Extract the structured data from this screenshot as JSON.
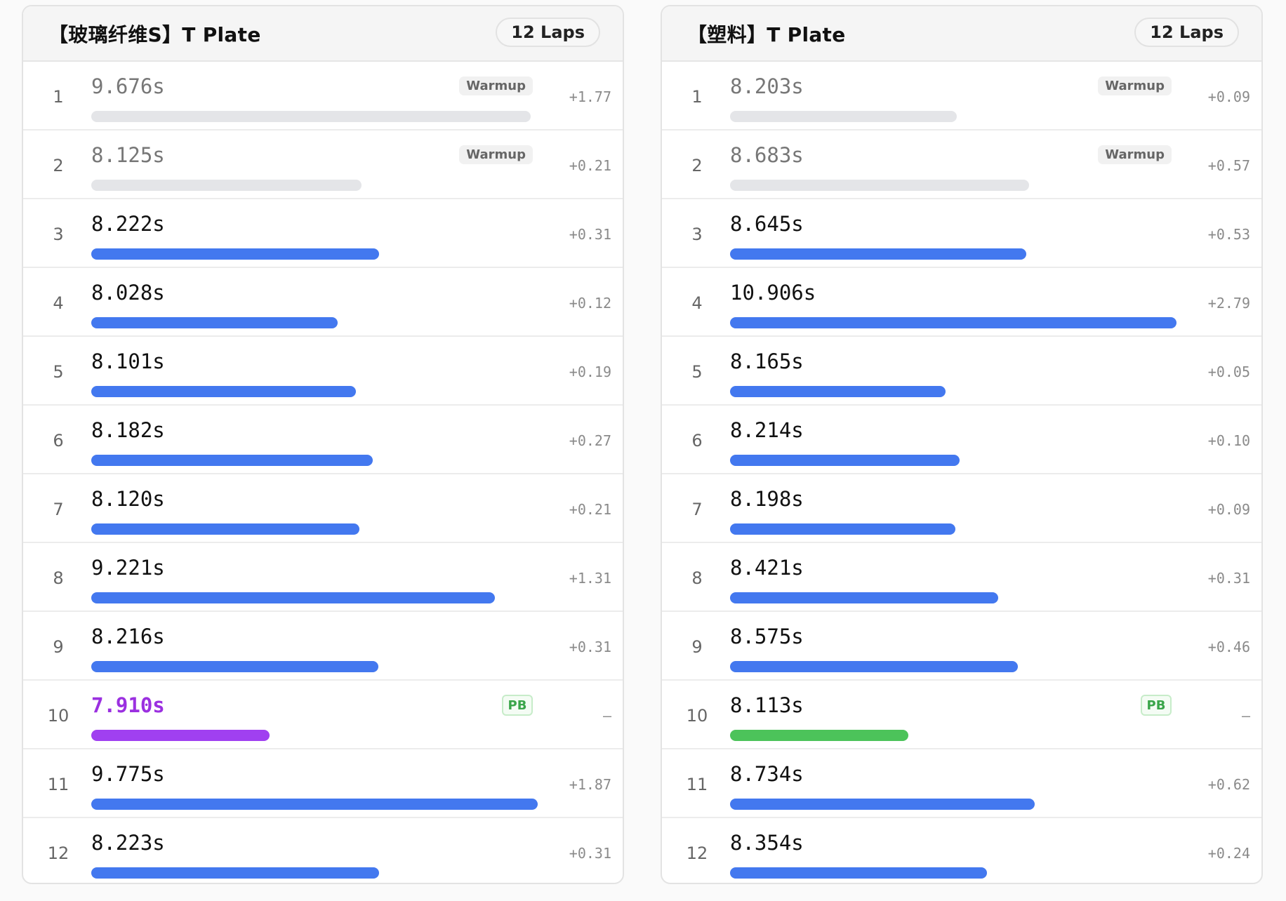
{
  "panels": [
    {
      "title": "【玻璃纤维S】T Plate",
      "laps_label": "12 Laps",
      "laps": [
        {
          "n": "1",
          "time": "9.676s",
          "delta": "+1.77",
          "bar": 0.985,
          "tag": "Warmup",
          "kind": "warm"
        },
        {
          "n": "2",
          "time": "8.125s",
          "delta": "+0.21",
          "bar": 0.605,
          "tag": "Warmup",
          "kind": "warm"
        },
        {
          "n": "3",
          "time": "8.222s",
          "delta": "+0.31",
          "bar": 0.645,
          "tag": "",
          "kind": "normal"
        },
        {
          "n": "4",
          "time": "8.028s",
          "delta": "+0.12",
          "bar": 0.552,
          "tag": "",
          "kind": "normal"
        },
        {
          "n": "5",
          "time": "8.101s",
          "delta": "+0.19",
          "bar": 0.592,
          "tag": "",
          "kind": "normal"
        },
        {
          "n": "6",
          "time": "8.182s",
          "delta": "+0.27",
          "bar": 0.63,
          "tag": "",
          "kind": "normal"
        },
        {
          "n": "7",
          "time": "8.120s",
          "delta": "+0.21",
          "bar": 0.601,
          "tag": "",
          "kind": "normal"
        },
        {
          "n": "8",
          "time": "9.221s",
          "delta": "+1.31",
          "bar": 0.904,
          "tag": "",
          "kind": "normal"
        },
        {
          "n": "9",
          "time": "8.216s",
          "delta": "+0.31",
          "bar": 0.643,
          "tag": "",
          "kind": "normal"
        },
        {
          "n": "10",
          "time": "7.910s",
          "delta": "–",
          "bar": 0.4,
          "tag": "PB",
          "kind": "best"
        },
        {
          "n": "11",
          "time": "9.775s",
          "delta": "+1.87",
          "bar": 1.0,
          "tag": "",
          "kind": "normal"
        },
        {
          "n": "12",
          "time": "8.223s",
          "delta": "+0.31",
          "bar": 0.645,
          "tag": "",
          "kind": "normal"
        }
      ]
    },
    {
      "title": "【塑料】T Plate",
      "laps_label": "12 Laps",
      "laps": [
        {
          "n": "1",
          "time": "8.203s",
          "delta": "+0.09",
          "bar": 0.508,
          "tag": "Warmup",
          "kind": "warm"
        },
        {
          "n": "2",
          "time": "8.683s",
          "delta": "+0.57",
          "bar": 0.67,
          "tag": "Warmup",
          "kind": "warm"
        },
        {
          "n": "3",
          "time": "8.645s",
          "delta": "+0.53",
          "bar": 0.663,
          "tag": "",
          "kind": "normal"
        },
        {
          "n": "4",
          "time": "10.906s",
          "delta": "+2.79",
          "bar": 1.0,
          "tag": "",
          "kind": "normal"
        },
        {
          "n": "5",
          "time": "8.165s",
          "delta": "+0.05",
          "bar": 0.483,
          "tag": "",
          "kind": "normal"
        },
        {
          "n": "6",
          "time": "8.214s",
          "delta": "+0.10",
          "bar": 0.514,
          "tag": "",
          "kind": "normal"
        },
        {
          "n": "7",
          "time": "8.198s",
          "delta": "+0.09",
          "bar": 0.505,
          "tag": "",
          "kind": "normal"
        },
        {
          "n": "8",
          "time": "8.421s",
          "delta": "+0.31",
          "bar": 0.6,
          "tag": "",
          "kind": "normal"
        },
        {
          "n": "9",
          "time": "8.575s",
          "delta": "+0.46",
          "bar": 0.644,
          "tag": "",
          "kind": "normal"
        },
        {
          "n": "10",
          "time": "8.113s",
          "delta": "–",
          "bar": 0.4,
          "tag": "PB",
          "kind": "pb-green"
        },
        {
          "n": "11",
          "time": "8.734s",
          "delta": "+0.62",
          "bar": 0.683,
          "tag": "",
          "kind": "normal"
        },
        {
          "n": "12",
          "time": "8.354s",
          "delta": "+0.24",
          "bar": 0.576,
          "tag": "",
          "kind": "normal"
        }
      ]
    }
  ]
}
